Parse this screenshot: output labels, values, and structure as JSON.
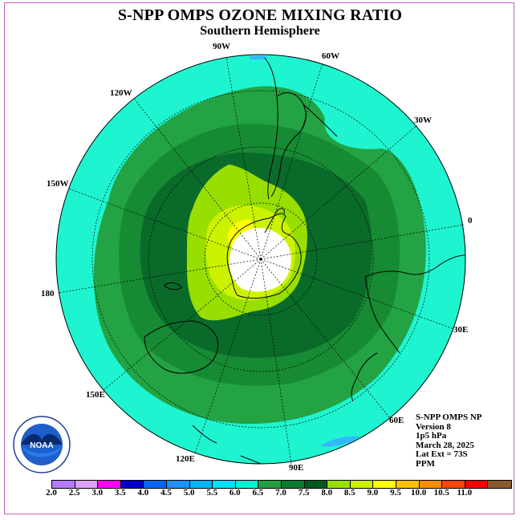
{
  "header": {
    "title": "S-NPP OMPS OZONE MIXING RATIO",
    "subtitle": "Southern Hemisphere"
  },
  "map": {
    "projection": "south polar stereographic",
    "longitude_labels": [
      "90W",
      "60W",
      "30W",
      "0",
      "30E",
      "60E",
      "90E",
      "120E",
      "150E",
      "180",
      "150W",
      "120W"
    ],
    "latitude_extent": "73S",
    "field": "ozone mixing ratio",
    "field_summary": "Outer ring 5.5-6.0 PPM (cyan), mid-latitudes 6.0-7.0 PPM (greens), polar collar 7.5-8.5 PPM (yellow-green/yellow), pole undefined (white)",
    "colors": {
      "ring_cyan": "#1ef5d0",
      "green_6_0": "#23a343",
      "green_6_5": "#178a34",
      "green_7_0": "#0a6a2a",
      "yellowgreen_7_5": "#98de00",
      "yellowgreen_8_0": "#ccf200",
      "yellow_8_5": "#ffff00",
      "pole": "#ffffff"
    }
  },
  "info": {
    "product": "S-NPP OMPS NP",
    "version": "Version 8",
    "level": "1p5 hPa",
    "date": "March 28, 2025",
    "lat_ext": "Lat Ext = 73S",
    "units": "PPM"
  },
  "colorbar": {
    "ticks": [
      "2.0",
      "2.5",
      "3.0",
      "3.5",
      "4.0",
      "4.5",
      "5.0",
      "5.5",
      "6.0",
      "6.5",
      "7.0",
      "7.5",
      "8.0",
      "8.5",
      "9.0",
      "9.5",
      "10.0",
      "10.5",
      "11.0"
    ],
    "colors": [
      "#b57aff",
      "#dca0ff",
      "#ff00ff",
      "#0000cc",
      "#0066ff",
      "#1e90ff",
      "#00b4ff",
      "#00e0ff",
      "#00f5d0",
      "#22a040",
      "#0a7a30",
      "#005a20",
      "#99e000",
      "#ccf000",
      "#ffff00",
      "#ffc000",
      "#ff8c00",
      "#ff4500",
      "#ff0000",
      "#8b5a2b"
    ]
  },
  "logo": {
    "text": "NOAA",
    "ring_text": "NATIONAL OCEANIC AND ATMOSPHERIC ADMINISTRATION",
    "bottom_text": "U.S. DEPARTMENT OF COMMERCE"
  }
}
